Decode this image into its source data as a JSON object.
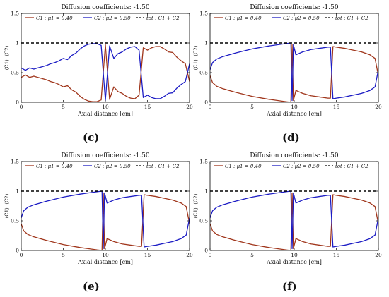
{
  "colors": {
    "c1": "#a0361c",
    "c2": "#1c1cc4",
    "tot": "#000000",
    "axis": "#000000"
  },
  "chart_data": [
    {
      "panel": "(c)",
      "type": "line",
      "title": "Diffusion coefficients: -1.50",
      "xlabel": "Axial distance [cm]",
      "ylabel": "⟨C1⟩, ⟨C2⟩",
      "xlim": [
        0,
        20
      ],
      "ylim": [
        0,
        1.5
      ],
      "xticks": [
        "0",
        "5",
        "10",
        "15",
        "20"
      ],
      "yticks": [
        "0",
        "0.5",
        "1",
        "1.5"
      ],
      "legend": [
        "C1 : μ1 = 0.40",
        "C2 : μ2 = 0.50",
        "tot : C1 + C2"
      ],
      "series": [
        {
          "name": "C1 : μ1 = 0.40",
          "x": [
            0,
            0.5,
            1,
            1.5,
            2,
            2.5,
            3,
            3.5,
            4,
            4.5,
            5,
            5.5,
            6,
            6.5,
            7,
            7.5,
            8,
            8.5,
            9,
            9.5,
            10,
            10.5,
            11,
            11.5,
            12,
            12.5,
            13,
            13.5,
            14,
            14.5,
            15,
            15.5,
            16,
            16.5,
            17,
            17.5,
            18,
            18.5,
            19,
            19.5,
            20
          ],
          "y": [
            0.42,
            0.46,
            0.42,
            0.44,
            0.42,
            0.4,
            0.38,
            0.35,
            0.33,
            0.3,
            0.26,
            0.28,
            0.21,
            0.17,
            0.1,
            0.05,
            0.02,
            0.01,
            0.01,
            0.04,
            0.97,
            0.05,
            0.26,
            0.18,
            0.15,
            0.1,
            0.07,
            0.06,
            0.12,
            0.92,
            0.88,
            0.92,
            0.94,
            0.94,
            0.9,
            0.85,
            0.84,
            0.76,
            0.7,
            0.65,
            0.35
          ]
        },
        {
          "name": "C2 : μ2 = 0.50",
          "x": [
            0,
            0.5,
            1,
            1.5,
            2,
            2.5,
            3,
            3.5,
            4,
            4.5,
            5,
            5.5,
            6,
            6.5,
            7,
            7.5,
            8,
            8.5,
            9,
            9.5,
            10,
            10.5,
            11,
            11.5,
            12,
            12.5,
            13,
            13.5,
            14,
            14.5,
            15,
            15.5,
            16,
            16.5,
            17,
            17.5,
            18,
            18.5,
            19,
            19.5,
            20
          ],
          "y": [
            0.58,
            0.54,
            0.58,
            0.56,
            0.58,
            0.6,
            0.62,
            0.65,
            0.67,
            0.7,
            0.74,
            0.72,
            0.79,
            0.83,
            0.9,
            0.95,
            0.98,
            0.99,
            0.99,
            0.96,
            0.03,
            0.95,
            0.74,
            0.82,
            0.85,
            0.9,
            0.93,
            0.94,
            0.88,
            0.08,
            0.12,
            0.08,
            0.06,
            0.06,
            0.1,
            0.15,
            0.16,
            0.24,
            0.3,
            0.35,
            0.65
          ]
        },
        {
          "name": "tot : C1 + C2",
          "x": [
            0,
            20
          ],
          "y": [
            1,
            1
          ]
        }
      ]
    },
    {
      "panel": "(d)",
      "type": "line",
      "title": "Diffusion coefficients: -1.50",
      "xlabel": "Axial distance [cm]",
      "ylabel": "⟨C1⟩, ⟨C2⟩",
      "xlim": [
        0,
        20
      ],
      "ylim": [
        0,
        1.5
      ],
      "xticks": [
        "0",
        "5",
        "10",
        "15",
        "20"
      ],
      "yticks": [
        "0",
        "0.5",
        "1",
        "1.5"
      ],
      "legend": [
        "C1 : μ1 = 0.40",
        "C2 : μ2 = 0.50",
        "tot : C1 + C2"
      ],
      "series": [
        {
          "name": "C1 : μ1 = 0.40",
          "x": [
            0,
            0.3,
            0.8,
            1.5,
            3,
            5,
            7,
            9,
            9.6,
            9.75,
            9.9,
            10.2,
            11,
            12,
            13,
            14,
            14.3,
            14.6,
            15,
            16,
            17,
            18,
            19,
            19.6,
            20
          ],
          "y": [
            0.45,
            0.33,
            0.27,
            0.23,
            0.17,
            0.1,
            0.05,
            0.01,
            0.0,
            0.97,
            0.03,
            0.2,
            0.15,
            0.11,
            0.09,
            0.07,
            0.07,
            0.94,
            0.93,
            0.91,
            0.88,
            0.85,
            0.8,
            0.74,
            0.45
          ]
        },
        {
          "name": "C2 : μ2 = 0.50",
          "x": [
            0,
            0.3,
            0.8,
            1.5,
            3,
            5,
            7,
            9,
            9.6,
            9.75,
            9.9,
            10.2,
            11,
            12,
            13,
            14,
            14.3,
            14.6,
            15,
            16,
            17,
            18,
            19,
            19.6,
            20
          ],
          "y": [
            0.55,
            0.67,
            0.73,
            0.77,
            0.83,
            0.9,
            0.95,
            0.99,
            1.0,
            0.03,
            0.97,
            0.8,
            0.85,
            0.89,
            0.91,
            0.93,
            0.93,
            0.06,
            0.07,
            0.09,
            0.12,
            0.15,
            0.2,
            0.26,
            0.55
          ]
        },
        {
          "name": "tot : C1 + C2",
          "x": [
            0,
            20
          ],
          "y": [
            1,
            1
          ]
        }
      ]
    },
    {
      "panel": "(e)",
      "type": "line",
      "title": "Diffusion coefficients: -1.50",
      "xlabel": "Axial distance [cm]",
      "ylabel": "⟨C1⟩, ⟨C2⟩",
      "xlim": [
        0,
        20
      ],
      "ylim": [
        0,
        1.5
      ],
      "xticks": [
        "0",
        "5",
        "10",
        "15",
        "20"
      ],
      "yticks": [
        "0",
        "0.5",
        "1",
        "1.5"
      ],
      "legend": [
        "C1 : μ1 = 0.40",
        "C2 : μ2 = 0.50",
        "tot : C1 + C2"
      ],
      "series": [
        {
          "name": "C1 : μ1 = 0.40",
          "x": [
            0,
            0.3,
            0.8,
            1.5,
            3,
            5,
            7,
            9,
            9.6,
            9.75,
            9.9,
            10.2,
            11,
            12,
            13,
            14,
            14.3,
            14.6,
            15,
            16,
            17,
            18,
            19,
            19.6,
            20
          ],
          "y": [
            0.45,
            0.33,
            0.27,
            0.23,
            0.17,
            0.1,
            0.05,
            0.01,
            0.0,
            0.97,
            0.03,
            0.2,
            0.15,
            0.11,
            0.09,
            0.07,
            0.07,
            0.94,
            0.93,
            0.91,
            0.88,
            0.85,
            0.8,
            0.74,
            0.45
          ]
        },
        {
          "name": "C2 : μ2 = 0.50",
          "x": [
            0,
            0.3,
            0.8,
            1.5,
            3,
            5,
            7,
            9,
            9.6,
            9.75,
            9.9,
            10.2,
            11,
            12,
            13,
            14,
            14.3,
            14.6,
            15,
            16,
            17,
            18,
            19,
            19.6,
            20
          ],
          "y": [
            0.55,
            0.67,
            0.73,
            0.77,
            0.83,
            0.9,
            0.95,
            0.99,
            1.0,
            0.03,
            0.97,
            0.8,
            0.85,
            0.89,
            0.91,
            0.93,
            0.93,
            0.06,
            0.07,
            0.09,
            0.12,
            0.15,
            0.2,
            0.26,
            0.55
          ]
        },
        {
          "name": "tot : C1 + C2",
          "x": [
            0,
            20
          ],
          "y": [
            1,
            1
          ]
        }
      ]
    },
    {
      "panel": "(f)",
      "type": "line",
      "title": "Diffusion coefficients: -1.50",
      "xlabel": "Axial distance [cm]",
      "ylabel": "⟨C1⟩, ⟨C2⟩",
      "xlim": [
        0,
        20
      ],
      "ylim": [
        0,
        1.5
      ],
      "xticks": [
        "0",
        "5",
        "10",
        "15",
        "20"
      ],
      "yticks": [
        "0",
        "0.5",
        "1",
        "1.5"
      ],
      "legend": [
        "C1 : μ1 = 0.40",
        "C2 : μ2 = 0.50",
        "tot : C1 + C2"
      ],
      "series": [
        {
          "name": "C1 : μ1 = 0.40",
          "x": [
            0,
            0.3,
            0.8,
            1.5,
            3,
            5,
            7,
            9,
            9.6,
            9.75,
            9.9,
            10.2,
            11,
            12,
            13,
            14,
            14.3,
            14.6,
            15,
            16,
            17,
            18,
            19,
            19.6,
            20
          ],
          "y": [
            0.45,
            0.33,
            0.27,
            0.23,
            0.17,
            0.1,
            0.05,
            0.01,
            0.0,
            0.97,
            0.03,
            0.2,
            0.15,
            0.11,
            0.09,
            0.07,
            0.07,
            0.94,
            0.93,
            0.91,
            0.88,
            0.85,
            0.8,
            0.74,
            0.45
          ]
        },
        {
          "name": "C2 : μ2 = 0.50",
          "x": [
            0,
            0.3,
            0.8,
            1.5,
            3,
            5,
            7,
            9,
            9.6,
            9.75,
            9.9,
            10.2,
            11,
            12,
            13,
            14,
            14.3,
            14.6,
            15,
            16,
            17,
            18,
            19,
            19.6,
            20
          ],
          "y": [
            0.55,
            0.67,
            0.73,
            0.77,
            0.83,
            0.9,
            0.95,
            0.99,
            1.0,
            0.03,
            0.97,
            0.8,
            0.85,
            0.89,
            0.91,
            0.93,
            0.93,
            0.06,
            0.07,
            0.09,
            0.12,
            0.15,
            0.2,
            0.26,
            0.55
          ]
        },
        {
          "name": "tot : C1 + C2",
          "x": [
            0,
            20
          ],
          "y": [
            1,
            1
          ]
        }
      ]
    }
  ]
}
